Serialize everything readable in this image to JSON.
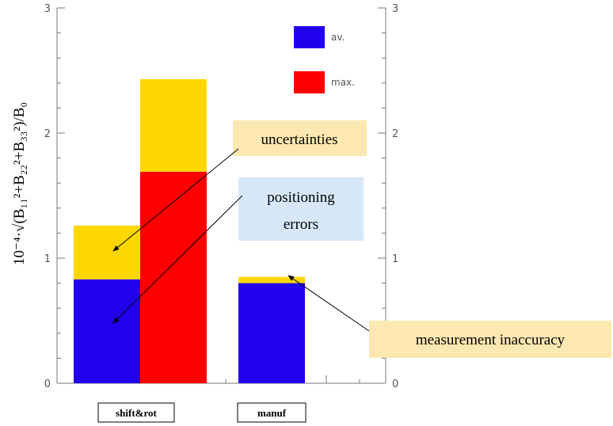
{
  "chart_data": {
    "type": "bar",
    "ylabel": "10⁻⁴·√(B₁₁²+B₂₂²+B₃₃²)/B₀",
    "ylim": [
      0,
      3
    ],
    "yticks": [
      0,
      1,
      2,
      3
    ],
    "categories": [
      "shift&rot",
      "manuf"
    ],
    "grid": false,
    "legend": {
      "position": "top-right",
      "entries": [
        {
          "label": "av.",
          "color": "#2200ee"
        },
        {
          "label": "max.",
          "color": "#ff0000"
        }
      ]
    },
    "uncertainty_color": "#ffd700",
    "bars": [
      {
        "category": "shift&rot",
        "series": "av.",
        "value": 0.83,
        "with_uncertainty": 1.26
      },
      {
        "category": "shift&rot",
        "series": "max.",
        "value": 1.69,
        "with_uncertainty": 2.43
      },
      {
        "category": "manuf",
        "series": "av.",
        "value": 0.8,
        "with_uncertainty": 0.85
      }
    ],
    "annotations": [
      {
        "id": "uncertainties",
        "text": "uncertainties",
        "box_color": "#fce8b0"
      },
      {
        "id": "positioning",
        "text": [
          "positioning",
          "errors"
        ],
        "box_color": "#d6e8f8"
      },
      {
        "id": "measurement",
        "text": "measurement inaccuracy",
        "box_color": "#fce8b0"
      }
    ]
  }
}
